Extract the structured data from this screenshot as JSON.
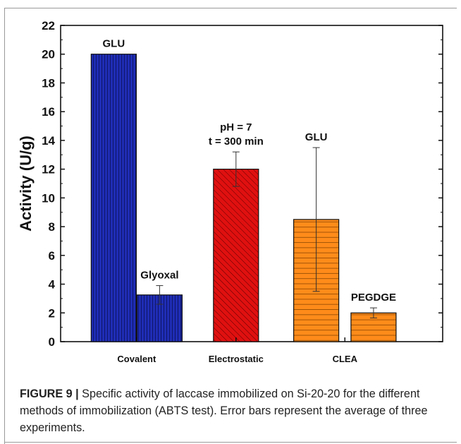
{
  "chart_data": {
    "type": "bar",
    "ylabel": "Activity (U/g)",
    "ylim": [
      0,
      22
    ],
    "yticks": [
      0,
      2,
      4,
      6,
      8,
      10,
      12,
      14,
      16,
      18,
      20,
      22
    ],
    "groups": [
      "Covalent",
      "Electrostatic",
      "CLEA"
    ],
    "bars": [
      {
        "group": "Covalent",
        "label": "GLU",
        "value": 20.0,
        "error": 0.0,
        "color": "#1f2db5",
        "pattern": "vertical"
      },
      {
        "group": "Covalent",
        "label": "Glyoxal",
        "value": 3.25,
        "error": 0.65,
        "color": "#1f2db5",
        "pattern": "vertical"
      },
      {
        "group": "Electrostatic",
        "label": "pH = 7\nt = 300 min",
        "value": 12.0,
        "error": 1.2,
        "color": "#e01010",
        "pattern": "diagonal"
      },
      {
        "group": "CLEA",
        "label": "GLU",
        "value": 8.5,
        "error": 5.0,
        "color": "#ff8c1a",
        "pattern": "horizontal"
      },
      {
        "group": "CLEA",
        "label": "PEGDGE",
        "value": 2.0,
        "error": 0.35,
        "color": "#ff8c1a",
        "pattern": "horizontal"
      }
    ],
    "grid": false,
    "legend": "none"
  },
  "caption": {
    "label": "FIGURE 9 |",
    "text": " Specific activity of laccase immobilized on Si-20-20 for the different methods of immobilization (ABTS test). Error bars represent the average of three experiments."
  }
}
